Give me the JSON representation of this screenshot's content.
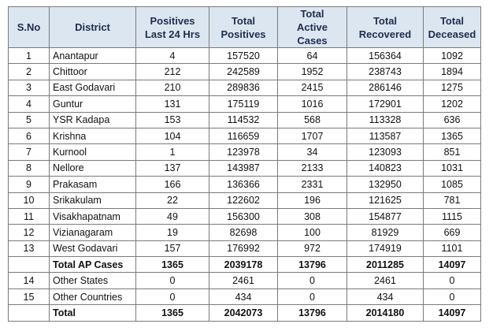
{
  "table": {
    "header": [
      "S.No",
      "District",
      "Positives\nLast 24 Hrs",
      "Total\nPositives",
      "Total\nActive Cases",
      "Total\nRecovered",
      "Total\nDeceased"
    ],
    "rows": [
      {
        "sno": 1,
        "district": "Anantapur",
        "values": [
          4,
          157520,
          64,
          156364,
          1092
        ]
      },
      {
        "sno": 2,
        "district": "Chittoor",
        "values": [
          212,
          242589,
          1952,
          238743,
          1894
        ]
      },
      {
        "sno": 3,
        "district": "East Godavari",
        "values": [
          210,
          289836,
          2415,
          286146,
          1275
        ]
      },
      {
        "sno": 4,
        "district": "Guntur",
        "values": [
          131,
          175119,
          1016,
          172901,
          1202
        ]
      },
      {
        "sno": 5,
        "district": "YSR Kadapa",
        "values": [
          153,
          114532,
          568,
          113328,
          636
        ]
      },
      {
        "sno": 6,
        "district": "Krishna",
        "values": [
          104,
          116659,
          1707,
          113587,
          1365
        ]
      },
      {
        "sno": 7,
        "district": "Kurnool",
        "values": [
          1,
          123978,
          34,
          123093,
          851
        ]
      },
      {
        "sno": 8,
        "district": "Nellore",
        "values": [
          137,
          143987,
          2133,
          140823,
          1031
        ]
      },
      {
        "sno": 9,
        "district": "Prakasam",
        "values": [
          166,
          136366,
          2331,
          132950,
          1085
        ]
      },
      {
        "sno": 10,
        "district": "Srikakulam",
        "values": [
          22,
          122602,
          196,
          121625,
          781
        ]
      },
      {
        "sno": 11,
        "district": "Visakhapatnam",
        "values": [
          49,
          156300,
          308,
          154877,
          1115
        ]
      },
      {
        "sno": 12,
        "district": "Vizianagaram",
        "values": [
          19,
          82698,
          100,
          81929,
          669
        ]
      },
      {
        "sno": 13,
        "district": "West Godavari",
        "values": [
          157,
          176992,
          972,
          174919,
          1101
        ]
      },
      {
        "district": "Total AP Cases",
        "values": [
          1365,
          2039178,
          13796,
          2011285,
          14097
        ],
        "bold": true
      },
      {
        "sno": 14,
        "district": "Other States",
        "values": [
          0,
          2461,
          0,
          2461,
          0
        ]
      },
      {
        "sno": 15,
        "district": "Other Countries",
        "values": [
          0,
          434,
          0,
          434,
          0
        ]
      },
      {
        "district": "Total",
        "values": [
          1365,
          2042073,
          13796,
          2014180,
          14097
        ],
        "bold": true
      }
    ]
  }
}
